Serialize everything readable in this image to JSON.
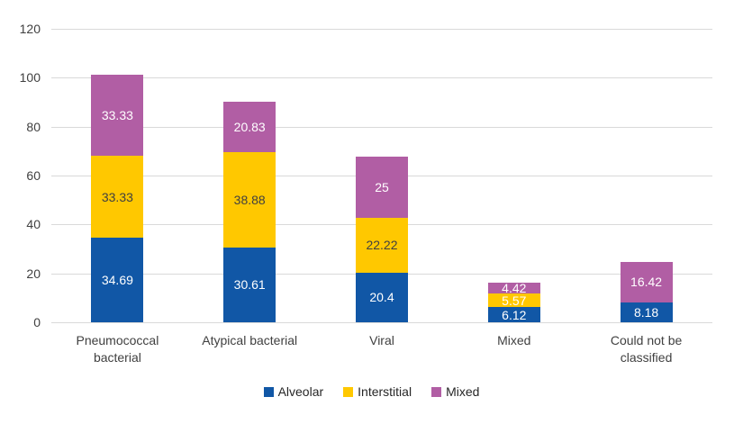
{
  "chart_data": {
    "type": "bar",
    "stacked": true,
    "title": "",
    "xlabel": "",
    "ylabel": "",
    "categories": [
      "Pneumococcal bacterial",
      "Atypical bacterial",
      "Viral",
      "Mixed",
      "Could not be classified"
    ],
    "series": [
      {
        "name": "Alveolar",
        "color": "#1157A6",
        "values": [
          34.69,
          30.61,
          20.4,
          6.12,
          8.18
        ],
        "labels": [
          "34.69",
          "30.61",
          "20.4",
          "6.12",
          "8.18"
        ],
        "label_colors": [
          "#FFFFFF",
          "#FFFFFF",
          "#FFFFFF",
          "#FFFFFF",
          "#FFFFFF"
        ]
      },
      {
        "name": "Interstitial",
        "color": "#FFC800",
        "values": [
          33.33,
          38.88,
          22.22,
          5.57,
          0
        ],
        "labels": [
          "33.33",
          "38.88",
          "22.22",
          "5.57",
          ""
        ],
        "label_colors": [
          "#404040",
          "#404040",
          "#404040",
          "#FFFFFF",
          ""
        ]
      },
      {
        "name": "Mixed",
        "color": "#B15EA4",
        "values": [
          33.33,
          20.83,
          25,
          4.42,
          16.42
        ],
        "labels": [
          "33.33",
          "20.83",
          "25",
          "4.42",
          "16.42"
        ],
        "label_colors": [
          "#FFFFFF",
          "#FFFFFF",
          "#FFFFFF",
          "#FFFFFF",
          "#FFFFFF"
        ]
      }
    ],
    "ylim": [
      0,
      120
    ],
    "yticks": [
      0,
      20,
      40,
      60,
      80,
      100,
      120
    ],
    "ytick_labels": [
      "0",
      "20",
      "40",
      "60",
      "80",
      "100",
      "120"
    ],
    "grid": true,
    "legend_position": "bottom",
    "colors": {
      "background": "#FFFFFF",
      "gridline": "#D9D9D9",
      "axis_text": "#404040"
    }
  }
}
